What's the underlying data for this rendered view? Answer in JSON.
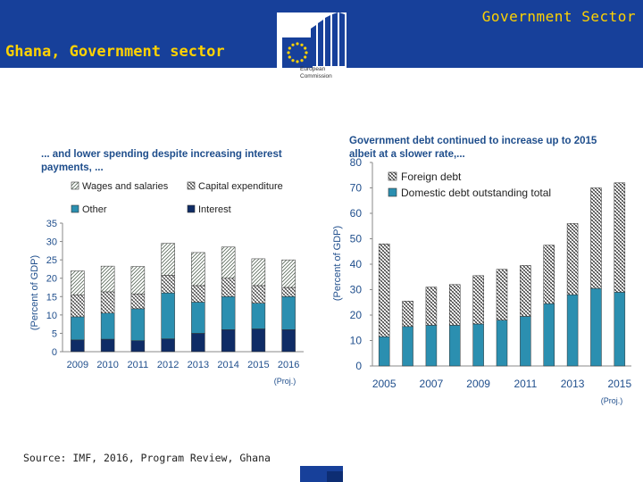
{
  "header": {
    "top_title": "Government Sector",
    "slide_title": "Ghana, Government sector",
    "logo_line1": "European",
    "logo_line2": "Commission"
  },
  "source_note": "Source: IMF, 2016, Program Review, Ghana",
  "colors": {
    "header_bg": "#17409a",
    "header_text": "#ffd200",
    "chart_title": "#1f4e8c",
    "teal": "#2b8fb0",
    "navy": "#0f2c66"
  },
  "chart_data": [
    {
      "type": "bar",
      "stacked": true,
      "title": "... and lower spending despite increasing interest payments, ...",
      "ylabel": "(Percent of GDP)",
      "xlabel": "",
      "categories": [
        "2009",
        "2010",
        "2011",
        "2012",
        "2013",
        "2014",
        "2015",
        "2016"
      ],
      "proj_label": "(Proj.)",
      "ylim": [
        0,
        35
      ],
      "yticks": [
        "0",
        "5",
        "10",
        "15",
        "20",
        "25",
        "30",
        "35"
      ],
      "legend_labels": [
        "Wages and salaries",
        "Capital expenditure",
        "Other",
        "Interest"
      ],
      "series": [
        {
          "name": "Interest",
          "values": [
            3.2,
            3.4,
            3.0,
            3.5,
            5.0,
            6.0,
            6.2,
            6.0
          ]
        },
        {
          "name": "Other",
          "values": [
            6.3,
            7.1,
            8.7,
            12.5,
            8.5,
            9.0,
            7.0,
            9.0
          ]
        },
        {
          "name": "Capital expenditure",
          "values": [
            6.0,
            5.8,
            4.0,
            4.8,
            4.5,
            5.0,
            4.8,
            2.5
          ]
        },
        {
          "name": "Wages and salaries",
          "values": [
            6.5,
            7.0,
            7.5,
            8.7,
            9.0,
            8.5,
            7.3,
            7.5
          ]
        }
      ]
    },
    {
      "type": "bar",
      "stacked": true,
      "title": "Government debt continued to increase up to 2015 albeit at a slower rate,...",
      "ylabel": "(Percent of GDP)",
      "xlabel": "",
      "categories": [
        "2005",
        "2006",
        "2007",
        "2008",
        "2009",
        "2010",
        "2011",
        "2012",
        "2013",
        "2014",
        "2015"
      ],
      "tick_labels": [
        "2005",
        "2007",
        "2009",
        "2011",
        "2013",
        "2015"
      ],
      "proj_label": "(Proj.)",
      "ylim": [
        0,
        80
      ],
      "yticks": [
        "0",
        "10",
        "20",
        "30",
        "40",
        "50",
        "60",
        "70",
        "80"
      ],
      "legend_labels": [
        "Foreign debt",
        "Domestic debt outstanding total"
      ],
      "series": [
        {
          "name": "Domestic debt outstanding total",
          "values": [
            11.5,
            15.5,
            16.0,
            16.0,
            16.5,
            18.0,
            19.5,
            24.5,
            28.0,
            30.5,
            29.0
          ]
        },
        {
          "name": "Foreign debt",
          "values": [
            36.5,
            10.0,
            15.0,
            16.0,
            19.0,
            20.0,
            20.0,
            23.0,
            28.0,
            39.5,
            43.0
          ]
        }
      ]
    }
  ]
}
